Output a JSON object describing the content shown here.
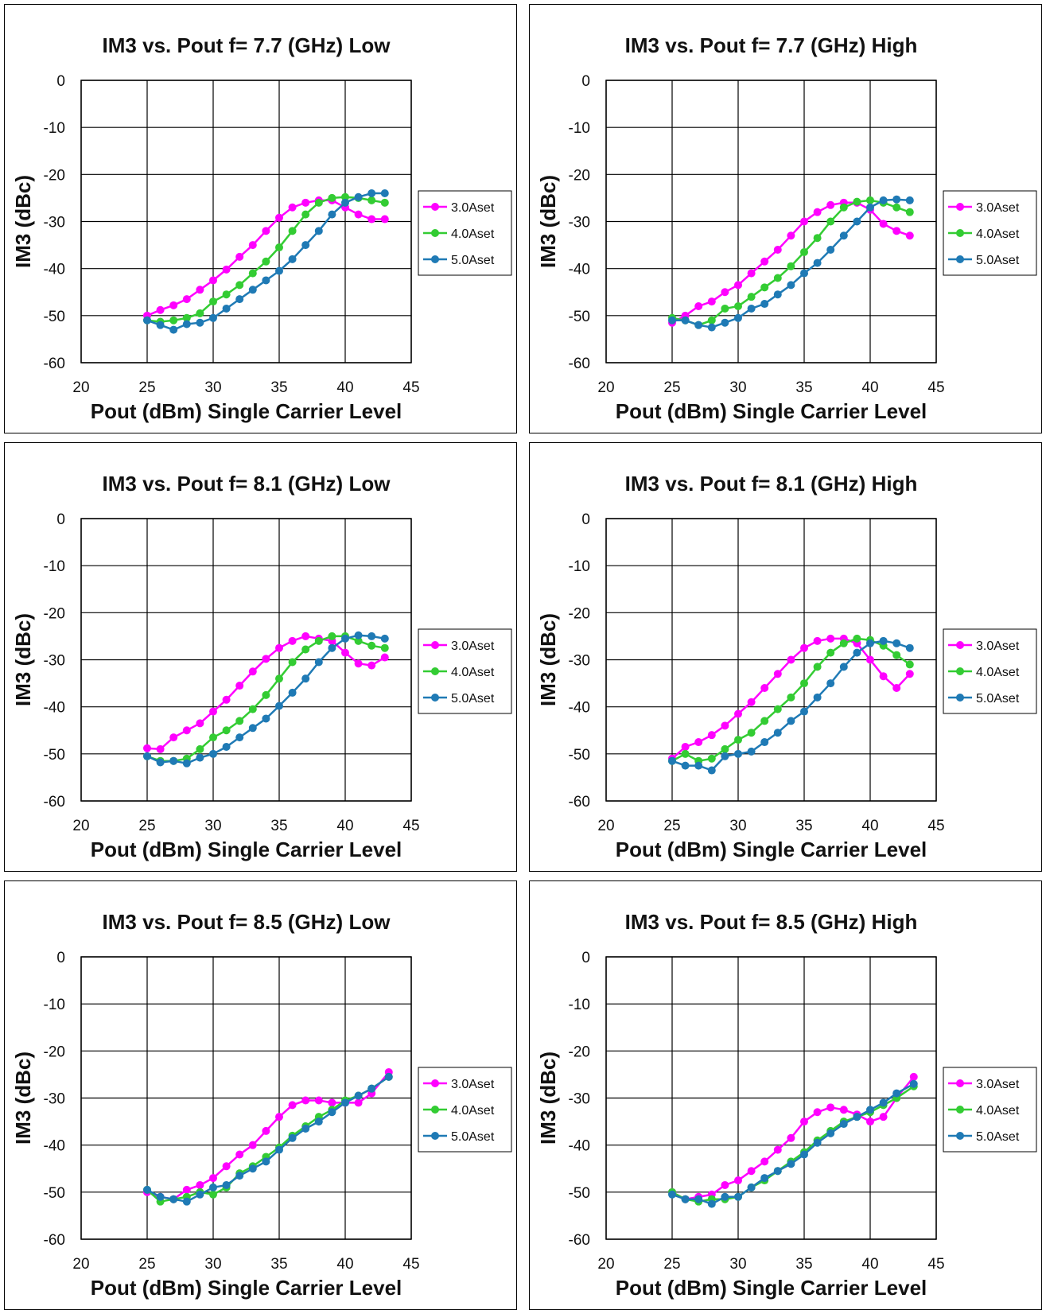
{
  "chart_data": [
    {
      "type": "line",
      "title": "IM3 vs. Pout f= 7.7 (GHz) Low",
      "xlabel": "Pout (dBm) Single Carrier Level",
      "ylabel": "IM3 (dBc)",
      "xlim": [
        20,
        45
      ],
      "ylim": [
        -60,
        0
      ],
      "xticks": [
        20,
        25,
        30,
        35,
        40,
        45
      ],
      "yticks": [
        0,
        -10,
        -20,
        -30,
        -40,
        -50,
        -60
      ],
      "grid": true,
      "legend": "right",
      "series": [
        {
          "name": "3.0Aset",
          "color": "#ff00ff",
          "x": [
            25,
            26,
            27,
            28,
            29,
            30,
            31,
            32,
            33,
            34,
            35,
            36,
            37,
            38,
            39,
            40,
            41,
            42,
            43
          ],
          "y": [
            -50,
            -48.8,
            -47.8,
            -46.5,
            -44.5,
            -42.5,
            -40.2,
            -37.5,
            -35,
            -32,
            -29.2,
            -27,
            -26,
            -25.5,
            -25.5,
            -27,
            -28.5,
            -29.5,
            -29.5
          ]
        },
        {
          "name": "4.0Aset",
          "color": "#33cc33",
          "x": [
            25,
            26,
            27,
            28,
            29,
            30,
            31,
            32,
            33,
            34,
            35,
            36,
            37,
            38,
            39,
            40,
            41,
            42,
            43
          ],
          "y": [
            -51,
            -51.3,
            -51,
            -50.5,
            -49.5,
            -47,
            -45.5,
            -43.5,
            -41,
            -38.5,
            -35.5,
            -32,
            -28.5,
            -26,
            -25,
            -24.8,
            -25,
            -25.5,
            -26
          ]
        },
        {
          "name": "5.0Aset",
          "color": "#1f7ab5",
          "x": [
            25,
            26,
            27,
            28,
            29,
            30,
            31,
            32,
            33,
            34,
            35,
            36,
            37,
            38,
            39,
            40,
            41,
            42,
            43
          ],
          "y": [
            -51,
            -52,
            -53,
            -51.8,
            -51.5,
            -50.5,
            -48.5,
            -46.5,
            -44.5,
            -42.5,
            -40.5,
            -38,
            -35,
            -32,
            -28.5,
            -26,
            -24.8,
            -24,
            -24
          ]
        }
      ]
    },
    {
      "type": "line",
      "title": "IM3 vs. Pout f= 7.7 (GHz) High",
      "xlabel": "Pout (dBm) Single Carrier Level",
      "ylabel": "IM3 (dBc)",
      "xlim": [
        20,
        45
      ],
      "ylim": [
        -60,
        0
      ],
      "xticks": [
        20,
        25,
        30,
        35,
        40,
        45
      ],
      "yticks": [
        0,
        -10,
        -20,
        -30,
        -40,
        -50,
        -60
      ],
      "grid": true,
      "legend": "right",
      "series": [
        {
          "name": "3.0Aset",
          "color": "#ff00ff",
          "x": [
            25,
            26,
            27,
            28,
            29,
            30,
            31,
            32,
            33,
            34,
            35,
            36,
            37,
            38,
            39,
            40,
            41,
            42,
            43
          ],
          "y": [
            -51.5,
            -50,
            -48,
            -47,
            -45,
            -43.5,
            -41,
            -38.5,
            -36,
            -33,
            -30,
            -28,
            -26.5,
            -26,
            -26,
            -27.5,
            -30.5,
            -32,
            -33
          ]
        },
        {
          "name": "4.0Aset",
          "color": "#33cc33",
          "x": [
            25,
            26,
            27,
            28,
            29,
            30,
            31,
            32,
            33,
            34,
            35,
            36,
            37,
            38,
            39,
            40,
            41,
            42,
            43
          ],
          "y": [
            -50.5,
            -51,
            -52,
            -51,
            -48.5,
            -48,
            -46,
            -44,
            -42,
            -39.5,
            -36.5,
            -33.5,
            -30,
            -27,
            -25.8,
            -25.5,
            -26,
            -27,
            -28
          ]
        },
        {
          "name": "5.0Aset",
          "color": "#1f7ab5",
          "x": [
            25,
            26,
            27,
            28,
            29,
            30,
            31,
            32,
            33,
            34,
            35,
            36,
            37,
            38,
            39,
            40,
            41,
            42,
            43
          ],
          "y": [
            -51,
            -51,
            -52,
            -52.5,
            -51.5,
            -50.5,
            -48.5,
            -47.5,
            -45.5,
            -43.5,
            -41,
            -38.8,
            -36,
            -33,
            -30,
            -27,
            -25.5,
            -25.3,
            -25.5
          ]
        }
      ]
    },
    {
      "type": "line",
      "title": "IM3 vs. Pout f= 8.1 (GHz) Low",
      "xlabel": "Pout (dBm) Single Carrier Level",
      "ylabel": "IM3 (dBc)",
      "xlim": [
        20,
        45
      ],
      "ylim": [
        -60,
        0
      ],
      "xticks": [
        20,
        25,
        30,
        35,
        40,
        45
      ],
      "yticks": [
        0,
        -10,
        -20,
        -30,
        -40,
        -50,
        -60
      ],
      "grid": true,
      "legend": "right",
      "series": [
        {
          "name": "3.0Aset",
          "color": "#ff00ff",
          "x": [
            25,
            26,
            27,
            28,
            29,
            30,
            31,
            32,
            33,
            34,
            35,
            36,
            37,
            38,
            39,
            40,
            41,
            42,
            43
          ],
          "y": [
            -48.8,
            -49,
            -46.5,
            -45,
            -43.5,
            -41,
            -38.5,
            -35.5,
            -32.5,
            -29.8,
            -27.5,
            -26,
            -25,
            -25.5,
            -26,
            -28.5,
            -30.8,
            -31.2,
            -29.5
          ]
        },
        {
          "name": "4.0Aset",
          "color": "#33cc33",
          "x": [
            25,
            26,
            27,
            28,
            29,
            30,
            31,
            32,
            33,
            34,
            35,
            36,
            37,
            38,
            39,
            40,
            41,
            42,
            43
          ],
          "y": [
            -50.5,
            -51.5,
            -51.5,
            -51,
            -49,
            -46.5,
            -45,
            -43,
            -40.5,
            -37.5,
            -34,
            -30.5,
            -27.8,
            -26,
            -25,
            -25,
            -26,
            -27,
            -27.5
          ]
        },
        {
          "name": "5.0Aset",
          "color": "#1f7ab5",
          "x": [
            25,
            26,
            27,
            28,
            29,
            30,
            31,
            32,
            33,
            34,
            35,
            36,
            37,
            38,
            39,
            40,
            41,
            42,
            43
          ],
          "y": [
            -50.5,
            -51.8,
            -51.5,
            -52,
            -50.8,
            -50,
            -48.5,
            -46.5,
            -44.5,
            -42.5,
            -39.8,
            -37,
            -34,
            -30.5,
            -27.5,
            -25.5,
            -24.8,
            -25,
            -25.5
          ]
        }
      ]
    },
    {
      "type": "line",
      "title": "IM3 vs. Pout f= 8.1 (GHz) High",
      "xlabel": "Pout (dBm) Single Carrier Level",
      "ylabel": "IM3 (dBc)",
      "xlim": [
        20,
        45
      ],
      "ylim": [
        -60,
        0
      ],
      "xticks": [
        20,
        25,
        30,
        35,
        40,
        45
      ],
      "yticks": [
        0,
        -10,
        -20,
        -30,
        -40,
        -50,
        -60
      ],
      "grid": true,
      "legend": "right",
      "series": [
        {
          "name": "3.0Aset",
          "color": "#ff00ff",
          "x": [
            25,
            26,
            27,
            28,
            29,
            30,
            31,
            32,
            33,
            34,
            35,
            36,
            37,
            38,
            39,
            40,
            41,
            42,
            43
          ],
          "y": [
            -51,
            -48.5,
            -47.5,
            -46,
            -44,
            -41.5,
            -39,
            -36,
            -33,
            -30,
            -27.5,
            -26,
            -25.5,
            -25.5,
            -26.5,
            -30,
            -33.5,
            -36,
            -33
          ]
        },
        {
          "name": "4.0Aset",
          "color": "#33cc33",
          "x": [
            25,
            26,
            27,
            28,
            29,
            30,
            31,
            32,
            33,
            34,
            35,
            36,
            37,
            38,
            39,
            40,
            41,
            42,
            43
          ],
          "y": [
            -51.5,
            -50,
            -51.5,
            -51,
            -49,
            -47,
            -45.5,
            -43,
            -40.5,
            -38,
            -35,
            -31.5,
            -28.5,
            -26.5,
            -25.5,
            -25.8,
            -27,
            -29,
            -31
          ]
        },
        {
          "name": "5.0Aset",
          "color": "#1f7ab5",
          "x": [
            25,
            26,
            27,
            28,
            29,
            30,
            31,
            32,
            33,
            34,
            35,
            36,
            37,
            38,
            39,
            40,
            41,
            42,
            43
          ],
          "y": [
            -51.5,
            -52.5,
            -52.5,
            -53.5,
            -50.5,
            -50,
            -49.5,
            -47.5,
            -45.5,
            -43,
            -41,
            -38,
            -35,
            -31.5,
            -28.5,
            -26.5,
            -26,
            -26.5,
            -27.5
          ]
        }
      ]
    },
    {
      "type": "line",
      "title": "IM3 vs. Pout f= 8.5 (GHz) Low",
      "xlabel": "Pout (dBm) Single Carrier Level",
      "ylabel": "IM3 (dBc)",
      "xlim": [
        20,
        45
      ],
      "ylim": [
        -60,
        0
      ],
      "xticks": [
        20,
        25,
        30,
        35,
        40,
        45
      ],
      "yticks": [
        0,
        -10,
        -20,
        -30,
        -40,
        -50,
        -60
      ],
      "grid": true,
      "legend": "right",
      "series": [
        {
          "name": "3.0Aset",
          "color": "#ff00ff",
          "x": [
            25,
            26,
            27,
            28,
            29,
            30,
            31,
            32,
            33,
            34,
            35,
            36,
            37,
            38,
            39,
            40,
            41,
            42,
            43.3
          ],
          "y": [
            -50,
            -51,
            -51.5,
            -49.5,
            -48.5,
            -47,
            -44.5,
            -42,
            -40,
            -37,
            -34,
            -31.5,
            -30.5,
            -30.5,
            -31,
            -31,
            -31,
            -29,
            -24.5
          ]
        },
        {
          "name": "4.0Aset",
          "color": "#33cc33",
          "x": [
            25,
            26,
            27,
            28,
            29,
            30,
            31,
            32,
            33,
            34,
            35,
            36,
            37,
            38,
            39,
            40,
            41,
            42,
            43.3
          ],
          "y": [
            -49.5,
            -52,
            -51.5,
            -51,
            -50,
            -50.5,
            -49,
            -46,
            -44.5,
            -42.5,
            -40.5,
            -38,
            -36,
            -34,
            -32.5,
            -30.5,
            -29.5,
            -28,
            -25.5
          ]
        },
        {
          "name": "5.0Aset",
          "color": "#1f7ab5",
          "x": [
            25,
            26,
            27,
            28,
            29,
            30,
            31,
            32,
            33,
            34,
            35,
            36,
            37,
            38,
            39,
            40,
            41,
            42,
            43.3
          ],
          "y": [
            -49.5,
            -51,
            -51.5,
            -52,
            -50.5,
            -49,
            -48.5,
            -46.5,
            -45,
            -43.5,
            -41,
            -38.5,
            -36.5,
            -35,
            -33,
            -31,
            -29.5,
            -28,
            -25.5
          ]
        }
      ]
    },
    {
      "type": "line",
      "title": "IM3 vs. Pout f= 8.5 (GHz) High",
      "xlabel": "Pout (dBm) Single Carrier Level",
      "ylabel": "IM3 (dBc)",
      "xlim": [
        20,
        45
      ],
      "ylim": [
        -60,
        0
      ],
      "xticks": [
        20,
        25,
        30,
        35,
        40,
        45
      ],
      "yticks": [
        0,
        -10,
        -20,
        -30,
        -40,
        -50,
        -60
      ],
      "grid": true,
      "legend": "right",
      "series": [
        {
          "name": "3.0Aset",
          "color": "#ff00ff",
          "x": [
            25,
            26,
            27,
            28,
            29,
            30,
            31,
            32,
            33,
            34,
            35,
            36,
            37,
            38,
            39,
            40,
            41,
            42,
            43.3
          ],
          "y": [
            -50,
            -51.5,
            -51,
            -50.5,
            -48.5,
            -47.5,
            -45.5,
            -43.5,
            -41,
            -38.5,
            -35,
            -33,
            -32,
            -32.5,
            -33.5,
            -35,
            -34,
            -30,
            -25.5
          ]
        },
        {
          "name": "4.0Aset",
          "color": "#33cc33",
          "x": [
            25,
            26,
            27,
            28,
            29,
            30,
            31,
            32,
            33,
            34,
            35,
            36,
            37,
            38,
            39,
            40,
            41,
            42,
            43.3
          ],
          "y": [
            -50,
            -51.5,
            -52,
            -51.5,
            -51.5,
            -51,
            -49,
            -47.5,
            -45.5,
            -43.5,
            -41.5,
            -39,
            -37,
            -35,
            -34,
            -33,
            -31.5,
            -30,
            -27.5
          ]
        },
        {
          "name": "5.0Aset",
          "color": "#1f7ab5",
          "x": [
            25,
            26,
            27,
            28,
            29,
            30,
            31,
            32,
            33,
            34,
            35,
            36,
            37,
            38,
            39,
            40,
            41,
            42,
            43.3
          ],
          "y": [
            -50.5,
            -51.5,
            -51.5,
            -52.5,
            -51,
            -51,
            -49,
            -47,
            -45.5,
            -44,
            -42,
            -39.5,
            -37.5,
            -35.5,
            -34,
            -32.5,
            -31,
            -29,
            -27
          ]
        }
      ]
    }
  ]
}
